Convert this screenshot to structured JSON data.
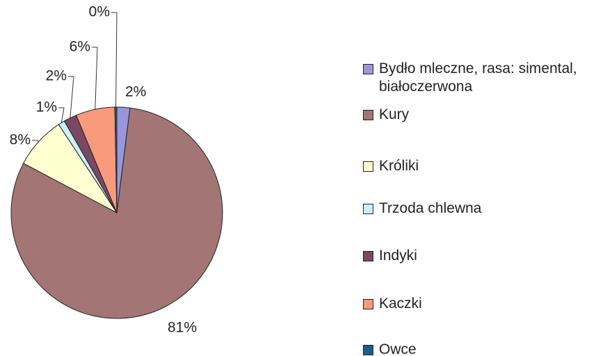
{
  "chart_data": {
    "type": "pie",
    "categories": [
      "Bydło mleczne, rasa: simental, białoczerwona",
      "Kury",
      "Króliki",
      "Trzoda chlewna",
      "Indyki",
      "Kaczki",
      "Owce"
    ],
    "values": [
      2,
      81,
      8,
      1,
      2,
      6,
      0.3
    ],
    "value_labels": [
      "2%",
      "81%",
      "8%",
      "1%",
      "2%",
      "6%",
      "0%"
    ],
    "colors": [
      "#9b96dc",
      "#a37575",
      "#ffffcf",
      "#cdeefb",
      "#7a4862",
      "#f89a7c",
      "#1d5f8c"
    ],
    "legend": "right"
  }
}
